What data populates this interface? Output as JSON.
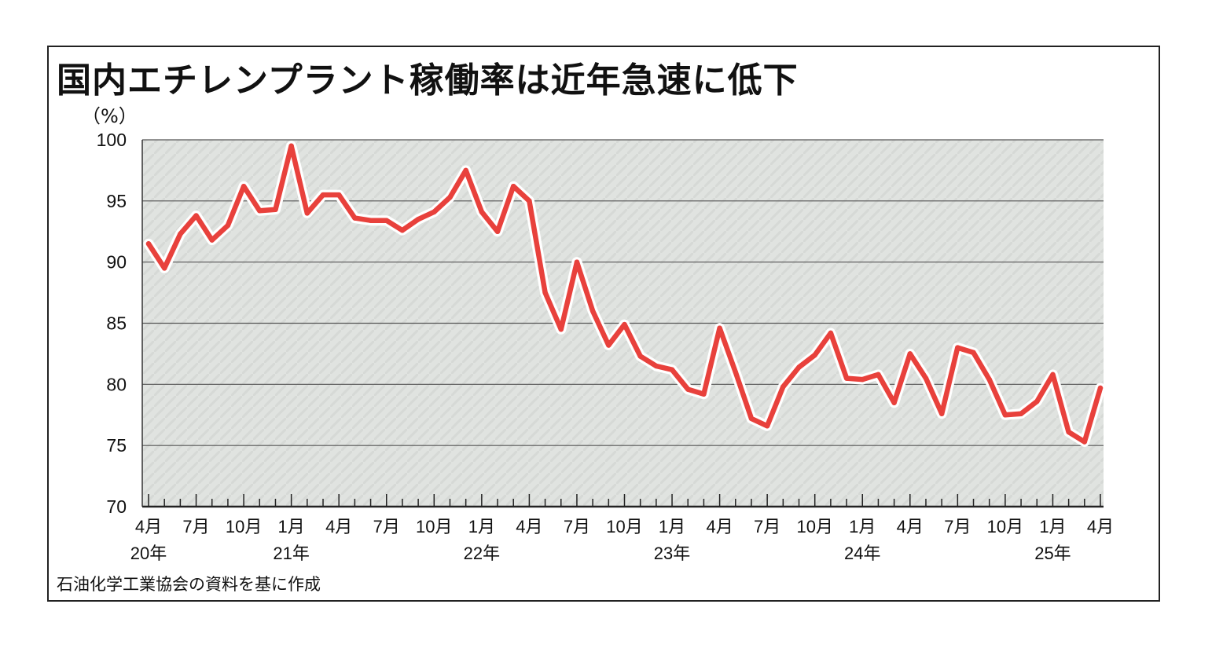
{
  "title": "国内エチレンプラント稼働率は近年急速に低下",
  "unit_label": "（%）",
  "source": "石油化学工業協会の資料を基に作成",
  "colors": {
    "line": "#e8413c",
    "line_halo": "#ffffff",
    "plot_bg": "#d8dcd8",
    "grid": "#555555"
  },
  "chart_data": {
    "type": "line",
    "ylim": [
      70,
      100
    ],
    "yticks": [
      100,
      95,
      90,
      85,
      80,
      75,
      70
    ],
    "grid": true,
    "xtick_labels": [
      "4月",
      "7月",
      "10月",
      "1月",
      "4月",
      "7月",
      "10月",
      "1月",
      "4月",
      "7月",
      "10月",
      "1月",
      "4月",
      "7月",
      "10月",
      "1月",
      "4月",
      "7月",
      "10月",
      "1月",
      "4月"
    ],
    "year_labels": [
      {
        "label": "20年",
        "month_index": 0
      },
      {
        "label": "21年",
        "month_index": 9
      },
      {
        "label": "22年",
        "month_index": 21
      },
      {
        "label": "23年",
        "month_index": 33
      },
      {
        "label": "24年",
        "month_index": 45
      },
      {
        "label": "25年",
        "month_index": 57
      }
    ],
    "x_start": "2020-04",
    "series": [
      {
        "values": [
          91.5,
          89.5,
          92.3,
          93.8,
          91.8,
          93.0,
          96.2,
          94.2,
          94.3,
          99.5,
          94.0,
          95.5,
          95.5,
          93.6,
          93.4,
          93.4,
          92.6,
          93.5,
          94.1,
          95.3,
          97.5,
          94.1,
          92.5,
          96.2,
          95.0,
          87.5,
          84.5,
          90.0,
          86.0,
          83.2,
          84.9,
          82.3,
          81.5,
          81.2,
          79.6,
          79.2,
          84.6,
          81.0,
          77.2,
          76.6,
          79.8,
          81.4,
          82.4,
          84.2,
          80.5,
          80.4,
          80.8,
          78.5,
          82.5,
          80.5,
          77.6,
          83.0,
          82.6,
          80.4,
          77.5,
          77.6,
          78.6,
          80.8,
          76.1,
          75.3,
          79.7
        ]
      }
    ]
  }
}
